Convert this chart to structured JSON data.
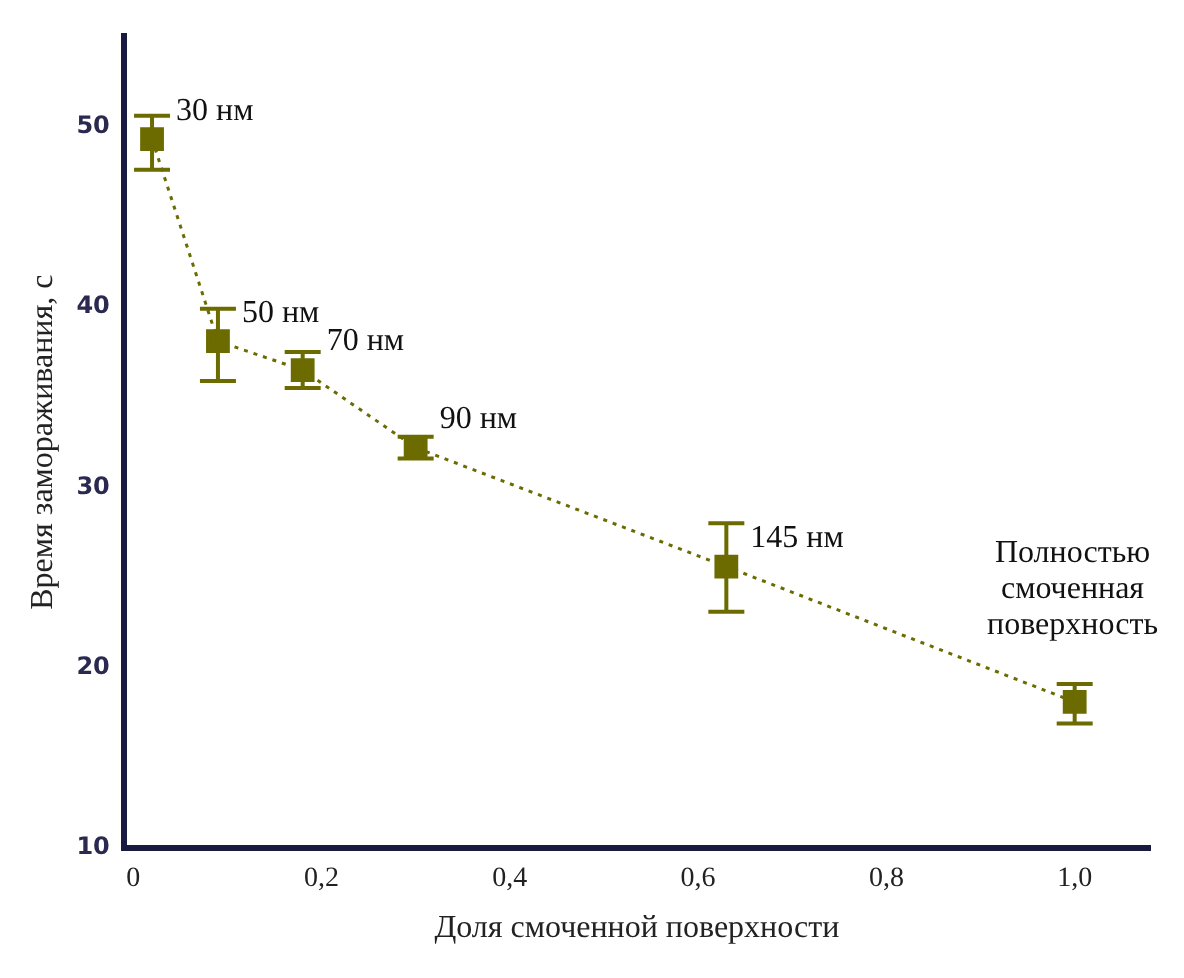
{
  "chart_data": {
    "type": "line",
    "xlabel": "Доля смоченной поверхности",
    "ylabel": "Время замораживания, с",
    "x": [
      0.02,
      0.09,
      0.18,
      0.3,
      0.63,
      1.0
    ],
    "series": [
      {
        "color": "#6b6b00",
        "values": [
          49.3,
          38.1,
          36.5,
          32.2,
          25.6,
          18.1
        ],
        "errors": [
          [
            47.6,
            50.6
          ],
          [
            35.9,
            39.9
          ],
          [
            35.5,
            37.5
          ],
          [
            31.6,
            32.8
          ],
          [
            23.1,
            28.0
          ],
          [
            16.9,
            19.1
          ]
        ]
      }
    ],
    "xlim": [
      -0.01,
      1.08
    ],
    "xticks": [
      {
        "value": 0,
        "label": "0"
      },
      {
        "value": 0.2,
        "label": "0,2"
      },
      {
        "value": 0.4,
        "label": "0,4"
      },
      {
        "value": 0.6,
        "label": "0,6"
      },
      {
        "value": 0.8,
        "label": "0,8"
      },
      {
        "value": 1.0,
        "label": "1,0"
      }
    ],
    "ylim": [
      10,
      55
    ],
    "yticks": [
      10,
      20,
      30,
      40,
      50
    ],
    "marker": "square",
    "line_style": "dotted",
    "grid": false,
    "legend": false,
    "annotations": [
      {
        "text": "30 нм",
        "x": 0.02,
        "y": 49.3
      },
      {
        "text": "50 нм",
        "x": 0.09,
        "y": 38.1
      },
      {
        "text": "70 нм",
        "x": 0.18,
        "y": 36.5
      },
      {
        "text": "90 нм",
        "x": 0.3,
        "y": 32.2
      },
      {
        "text": "145 нм",
        "x": 0.63,
        "y": 25.6
      },
      {
        "text": "Полностью\nсмоченная\nповерхность",
        "x": 1.0,
        "y": 18.1
      }
    ]
  }
}
